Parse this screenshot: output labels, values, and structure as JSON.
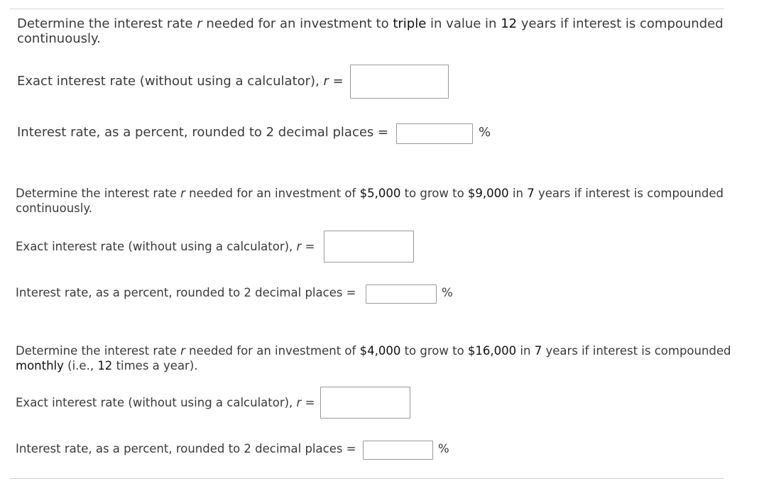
{
  "problems": [
    {
      "prompt": {
        "t1": "Determine the interest rate ",
        "var": "r",
        "t2": " needed for an investment to ",
        "h1": "triple",
        "t3": " in value in ",
        "h2": "12",
        "t4": " years if interest is compounded continuously."
      },
      "exact_label": "Exact interest rate (without using a calculator), ",
      "exact_var": "r",
      "exact_eq": " =",
      "percent_label": "Interest rate, as a percent, rounded to 2 decimal places =",
      "percent_sign": "%"
    },
    {
      "prompt": {
        "t1": "Determine the interest rate ",
        "var": "r",
        "t2": " needed for an investment of ",
        "h1": "$5,000",
        "t3": " to grow to ",
        "h2": "$9,000",
        "t4": " in ",
        "h3": "7",
        "t5": " years if interest is compounded continuously."
      },
      "exact_label": "Exact interest rate (without using a calculator), ",
      "exact_var": "r",
      "exact_eq": " =",
      "percent_label": "Interest rate, as a percent, rounded to 2 decimal places =",
      "percent_sign": "%"
    },
    {
      "prompt": {
        "t1": "Determine the interest rate ",
        "var": "r",
        "t2": " needed for an investment of ",
        "h1": "$4,000",
        "t3": " to grow to ",
        "h2": "$16,000",
        "t4": " in ",
        "h3": "7",
        "t5": " years if interest is compounded ",
        "h4": "monthly",
        "t6": " (i.e., ",
        "h5": "12",
        "t7": " times a year)."
      },
      "exact_label": "Exact interest rate (without using a calculator), ",
      "exact_var": "r",
      "exact_eq": " =",
      "percent_label": "Interest rate, as a percent, rounded to 2 decimal places =",
      "percent_sign": "%"
    }
  ]
}
